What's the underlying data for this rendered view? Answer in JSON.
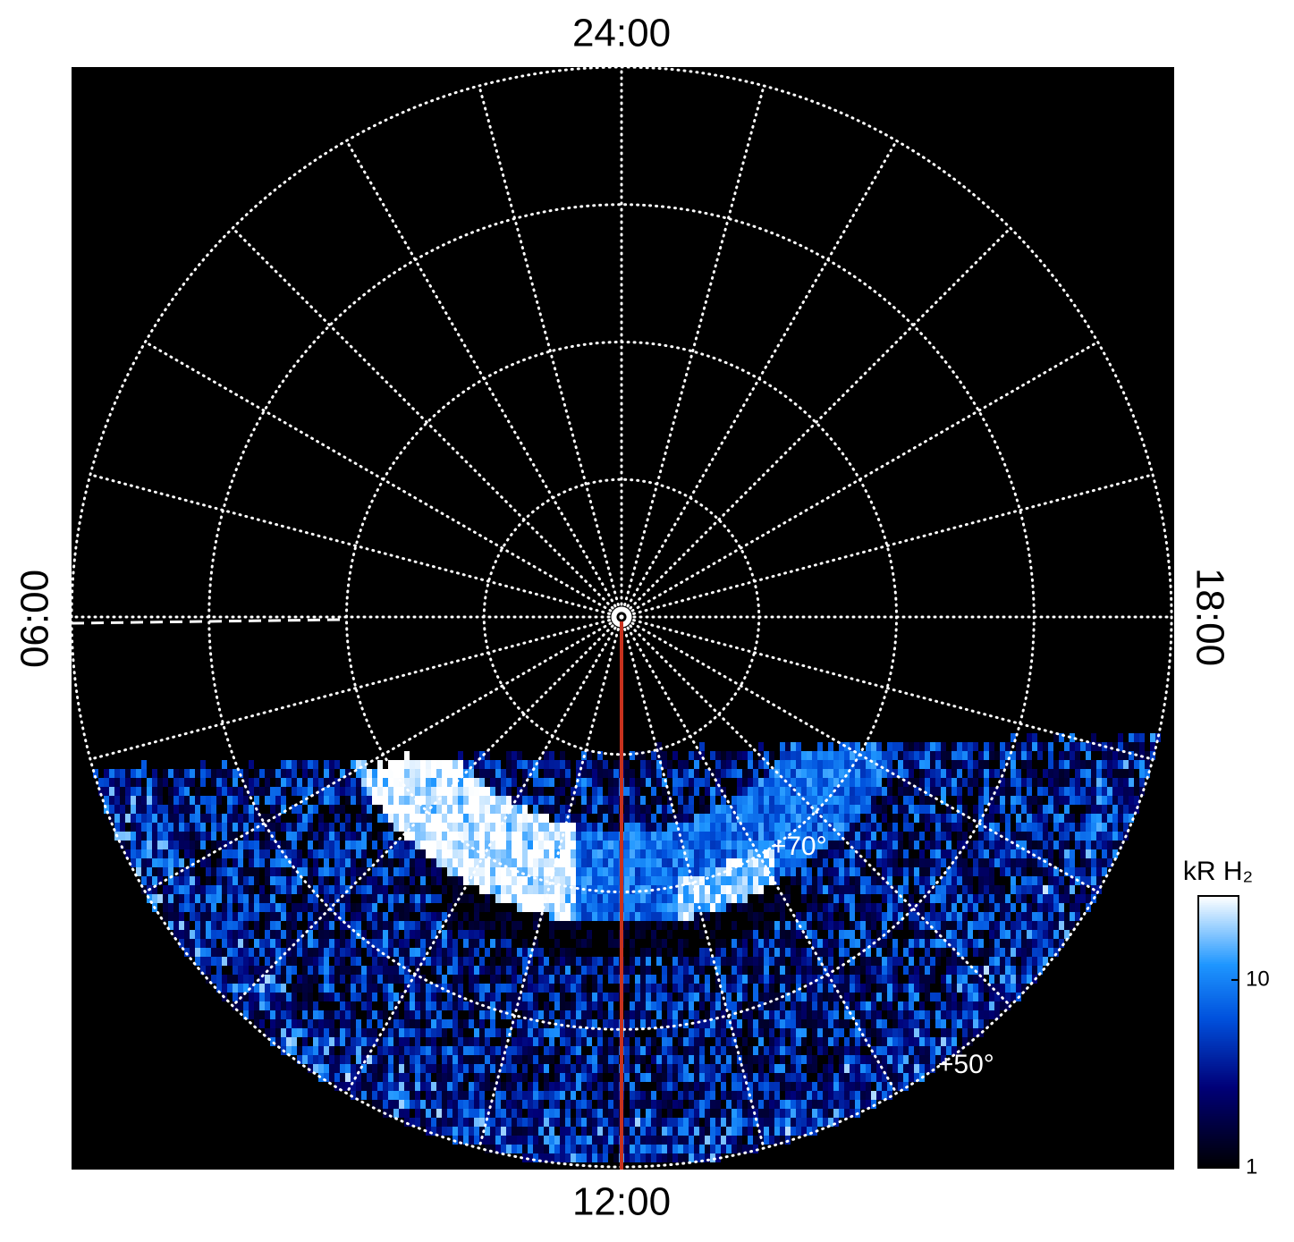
{
  "chart_data": {
    "type": "polar-image",
    "rlim": [
      90,
      50
    ],
    "rticks": [
      {
        "value": 80,
        "label": null
      },
      {
        "value": 70,
        "label": "+70°"
      },
      {
        "value": 60,
        "label": null
      },
      {
        "value": 50,
        "label": "+50°"
      }
    ],
    "thetaticks": [
      {
        "value": 0,
        "label": "24:00"
      },
      {
        "value": 6,
        "label": "06:00"
      },
      {
        "value": 12,
        "label": "12:00"
      },
      {
        "value": 18,
        "label": "18:00"
      }
    ],
    "grid": true,
    "colorbar": {
      "label": "kR H₂",
      "log": true,
      "lim": [
        1,
        28
      ],
      "ticks": [
        1,
        10
      ]
    }
  }
}
